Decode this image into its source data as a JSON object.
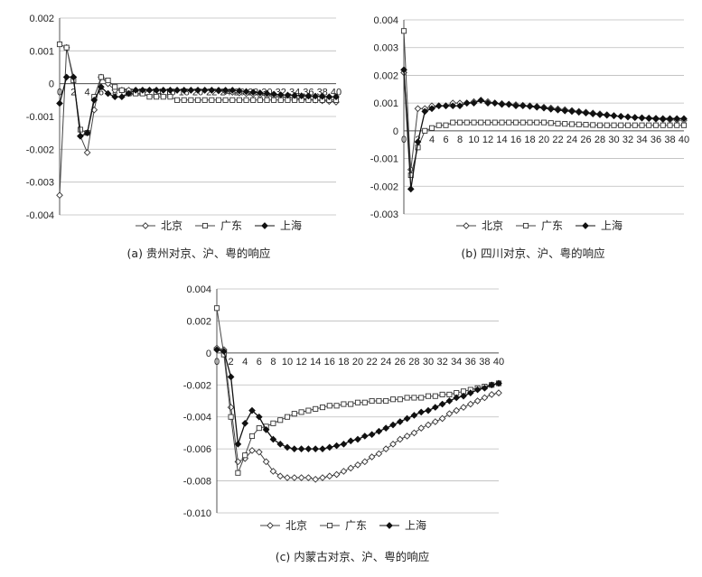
{
  "chart_data": [
    {
      "type": "line",
      "caption": "(a) 贵州对京、沪、粤的响应",
      "ylim": [
        -0.004,
        0.002
      ],
      "yticks": [
        "0.002",
        "0.001",
        "0",
        "-0.001",
        "-0.002",
        "-0.003",
        "-0.004"
      ],
      "ytick_values": [
        0.002,
        0.001,
        0,
        -0.001,
        -0.002,
        -0.003,
        -0.004
      ],
      "xticks": [
        "0",
        "2",
        "4",
        "6",
        "8",
        "10",
        "12",
        "14",
        "16",
        "18",
        "20",
        "22",
        "24",
        "26",
        "28",
        "30",
        "32",
        "34",
        "36",
        "38",
        "40"
      ],
      "grid": true,
      "legend_position": "bottom",
      "series": [
        {
          "name": "北京",
          "marker": "diamond",
          "values": [
            -0.0034,
            0.0011,
            0.0002,
            -0.0016,
            -0.0021,
            -0.0008,
            0.0002,
            0.0,
            -0.0002,
            -0.0002,
            -0.0002,
            -0.0002,
            -0.0002,
            -0.0002,
            -0.0002,
            -0.0002,
            -0.0002,
            -0.0002,
            -0.0002,
            -0.0002,
            -0.0002,
            -0.0002,
            -0.0002,
            -0.00022,
            -0.00024,
            -0.00026,
            -0.00028,
            -0.0003,
            -0.00032,
            -0.00034,
            -0.00036,
            -0.00038,
            -0.0004,
            -0.00042,
            -0.00044,
            -0.00046,
            -0.00048,
            -0.0005,
            -0.00052,
            -0.00054,
            -0.00056
          ]
        },
        {
          "name": "广东",
          "marker": "square",
          "values": [
            0.0012,
            0.0011,
            0.0001,
            -0.0014,
            -0.0015,
            -0.0004,
            0.0002,
            0.0001,
            -0.0001,
            -0.0002,
            -0.0003,
            -0.0003,
            -0.0003,
            -0.0004,
            -0.0004,
            -0.0004,
            -0.0004,
            -0.0005,
            -0.0005,
            -0.0005,
            -0.0005,
            -0.0005,
            -0.0005,
            -0.0005,
            -0.0005,
            -0.0005,
            -0.0005,
            -0.0005,
            -0.0005,
            -0.0005,
            -0.0005,
            -0.0005,
            -0.0005,
            -0.0005,
            -0.0005,
            -0.0005,
            -0.0005,
            -0.0005,
            -0.0005,
            -0.0005,
            -0.0005
          ]
        },
        {
          "name": "上海",
          "marker": "filled-diamond",
          "values": [
            -0.0006,
            0.0002,
            0.0002,
            -0.0016,
            -0.0015,
            -0.0005,
            -0.0001,
            -0.0003,
            -0.0004,
            -0.0004,
            -0.0003,
            -0.0002,
            -0.0002,
            -0.0002,
            -0.0002,
            -0.0002,
            -0.0002,
            -0.0002,
            -0.0002,
            -0.0002,
            -0.0002,
            -0.0002,
            -0.0002,
            -0.0002,
            -0.0002,
            -0.0002,
            -0.00022,
            -0.00024,
            -0.00026,
            -0.00028,
            -0.0003,
            -0.00032,
            -0.00034,
            -0.00035,
            -0.00036,
            -0.00037,
            -0.00038,
            -0.00038,
            -0.00039,
            -0.0004,
            -0.0004
          ]
        }
      ]
    },
    {
      "type": "line",
      "caption": "(b) 四川对京、沪、粤的响应",
      "ylim": [
        -0.003,
        0.004
      ],
      "yticks": [
        "0.004",
        "0.003",
        "0.002",
        "0.001",
        "0",
        "-0.001",
        "-0.002",
        "-0.003"
      ],
      "ytick_values": [
        0.004,
        0.003,
        0.002,
        0.001,
        0,
        -0.001,
        -0.002,
        -0.003
      ],
      "xticks": [
        "0",
        "2",
        "4",
        "6",
        "8",
        "10",
        "12",
        "14",
        "16",
        "18",
        "20",
        "22",
        "24",
        "26",
        "28",
        "30",
        "32",
        "34",
        "36",
        "38",
        "40"
      ],
      "grid": true,
      "legend_position": "bottom",
      "series": [
        {
          "name": "北京",
          "marker": "diamond",
          "values": [
            0.0021,
            -0.0014,
            0.0008,
            0.0008,
            0.0009,
            0.0009,
            0.0009,
            0.001,
            0.001,
            0.001,
            0.00105,
            0.0011,
            0.00105,
            0.001,
            0.00098,
            0.00096,
            0.00094,
            0.00092,
            0.0009,
            0.00088,
            0.00085,
            0.00082,
            0.00079,
            0.00076,
            0.00073,
            0.0007,
            0.00067,
            0.00064,
            0.00061,
            0.00058,
            0.00055,
            0.00052,
            0.0005,
            0.00048,
            0.00046,
            0.00044,
            0.00042,
            0.00041,
            0.0004,
            0.00039,
            0.00038
          ]
        },
        {
          "name": "广东",
          "marker": "square",
          "values": [
            0.0036,
            -0.0016,
            -0.0006,
            0.0,
            0.0001,
            0.0002,
            0.0002,
            0.0003,
            0.0003,
            0.0003,
            0.0003,
            0.0003,
            0.0003,
            0.0003,
            0.0003,
            0.0003,
            0.0003,
            0.0003,
            0.0003,
            0.0003,
            0.0003,
            0.00028,
            0.00026,
            0.00025,
            0.00024,
            0.00023,
            0.00022,
            0.00021,
            0.0002,
            0.0002,
            0.0002,
            0.0002,
            0.0002,
            0.0002,
            0.0002,
            0.0002,
            0.0002,
            0.0002,
            0.0002,
            0.0002,
            0.0002
          ]
        },
        {
          "name": "上海",
          "marker": "filled-diamond",
          "values": [
            0.0022,
            -0.0021,
            -0.0004,
            0.0007,
            0.0008,
            0.0009,
            0.0009,
            0.0009,
            0.0009,
            0.001,
            0.001,
            0.0011,
            0.001,
            0.001,
            0.00095,
            0.00095,
            0.0009,
            0.0009,
            0.00088,
            0.00085,
            0.00082,
            0.00078,
            0.00075,
            0.00072,
            0.0007,
            0.00067,
            0.00064,
            0.00061,
            0.00058,
            0.00056,
            0.00054,
            0.00052,
            0.0005,
            0.00048,
            0.00047,
            0.00046,
            0.00045,
            0.00044,
            0.00044,
            0.00044,
            0.00044
          ]
        }
      ]
    },
    {
      "type": "line",
      "caption": "(c) 内蒙古对京、沪、粤的响应",
      "ylim": [
        -0.01,
        0.004
      ],
      "yticks": [
        "0.004",
        "0.002",
        "0",
        "-0.002",
        "-0.004",
        "-0.006",
        "-0.008",
        "-0.010"
      ],
      "ytick_values": [
        0.004,
        0.002,
        0,
        -0.002,
        -0.004,
        -0.006,
        -0.008,
        -0.01
      ],
      "xticks": [
        "0",
        "2",
        "4",
        "6",
        "8",
        "10",
        "12",
        "14",
        "16",
        "18",
        "20",
        "22",
        "24",
        "26",
        "28",
        "30",
        "32",
        "34",
        "36",
        "38",
        "40"
      ],
      "grid": true,
      "legend_position": "bottom",
      "series": [
        {
          "name": "北京",
          "marker": "diamond",
          "values": [
            0.0003,
            0.0002,
            -0.0034,
            -0.0068,
            -0.0066,
            -0.0061,
            -0.0062,
            -0.0068,
            -0.0074,
            -0.0077,
            -0.0078,
            -0.0078,
            -0.0078,
            -0.0078,
            -0.0079,
            -0.0078,
            -0.0077,
            -0.0076,
            -0.0074,
            -0.0072,
            -0.007,
            -0.0068,
            -0.0065,
            -0.0063,
            -0.006,
            -0.0057,
            -0.0054,
            -0.0052,
            -0.005,
            -0.0047,
            -0.0045,
            -0.0043,
            -0.0041,
            -0.0038,
            -0.0036,
            -0.0034,
            -0.0032,
            -0.003,
            -0.0028,
            -0.0026,
            -0.0025
          ]
        },
        {
          "name": "广东",
          "marker": "square",
          "values": [
            0.0028,
            -0.0001,
            -0.004,
            -0.0075,
            -0.0064,
            -0.0052,
            -0.0047,
            -0.0046,
            -0.0044,
            -0.0042,
            -0.004,
            -0.0038,
            -0.0037,
            -0.0036,
            -0.0035,
            -0.0034,
            -0.0033,
            -0.0033,
            -0.0032,
            -0.0032,
            -0.0031,
            -0.0031,
            -0.003,
            -0.003,
            -0.003,
            -0.0029,
            -0.0029,
            -0.0028,
            -0.0028,
            -0.0028,
            -0.0027,
            -0.0027,
            -0.0026,
            -0.0026,
            -0.0025,
            -0.0024,
            -0.0023,
            -0.0022,
            -0.0021,
            -0.002,
            -0.0019
          ]
        },
        {
          "name": "上海",
          "marker": "filled-diamond",
          "values": [
            0.0002,
            0.0001,
            -0.0015,
            -0.0057,
            -0.0044,
            -0.0036,
            -0.004,
            -0.0048,
            -0.0054,
            -0.0057,
            -0.0059,
            -0.006,
            -0.006,
            -0.006,
            -0.006,
            -0.006,
            -0.0059,
            -0.0058,
            -0.0057,
            -0.0055,
            -0.0054,
            -0.0052,
            -0.0051,
            -0.0049,
            -0.0047,
            -0.0045,
            -0.0043,
            -0.0041,
            -0.0039,
            -0.0037,
            -0.0036,
            -0.0034,
            -0.0032,
            -0.003,
            -0.0028,
            -0.0027,
            -0.0025,
            -0.0023,
            -0.0022,
            -0.002,
            -0.0019
          ]
        }
      ]
    }
  ]
}
